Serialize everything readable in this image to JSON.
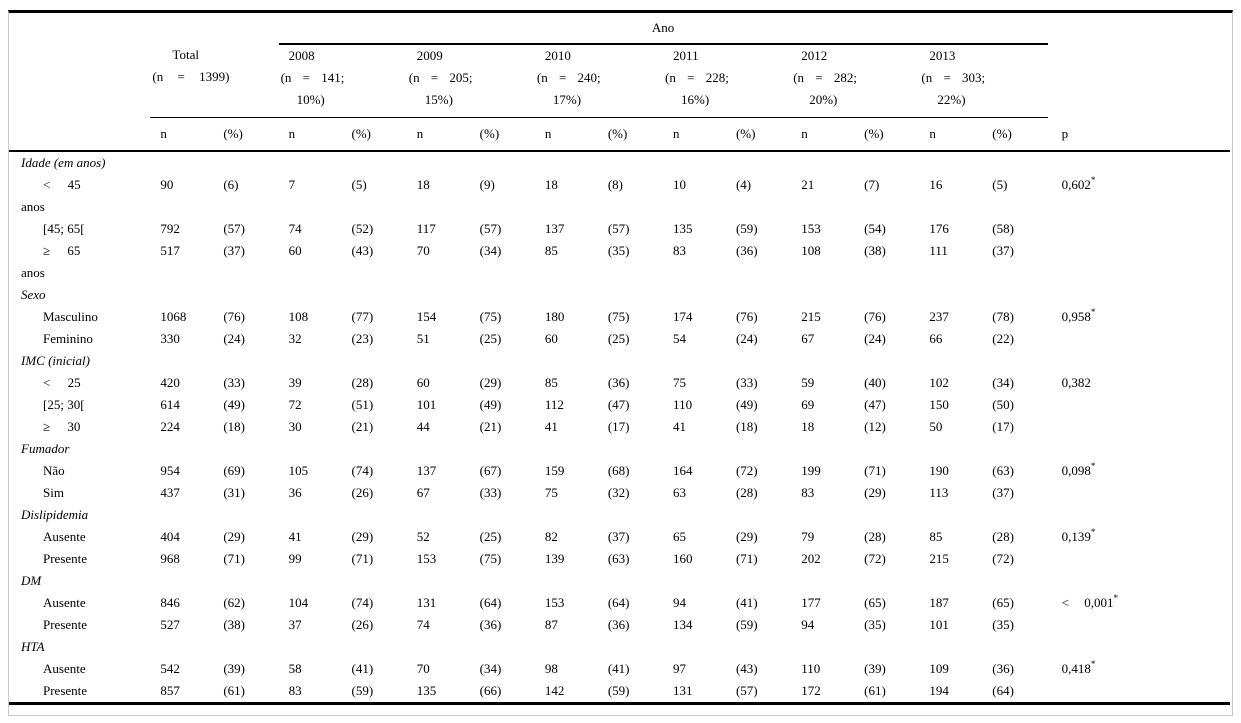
{
  "table": {
    "span_header": "Ano",
    "p_header": "p",
    "sub_n": "n",
    "sub_pct": "(%)",
    "groups": [
      {
        "name": "Total",
        "count_line": "(n = 1399)",
        "pct_line": ""
      },
      {
        "name": "2008",
        "count_line": "(n = 141;",
        "pct_line": "10%)"
      },
      {
        "name": "2009",
        "count_line": "(n = 205;",
        "pct_line": "15%)"
      },
      {
        "name": "2010",
        "count_line": "(n = 240;",
        "pct_line": "17%)"
      },
      {
        "name": "2011",
        "count_line": "(n = 228;",
        "pct_line": "16%)"
      },
      {
        "name": "2012",
        "count_line": "(n = 282;",
        "pct_line": "20%)"
      },
      {
        "name": "2013",
        "count_line": "(n = 303;",
        "pct_line": "22%)"
      }
    ],
    "rows": [
      {
        "type": "section",
        "label": "Idade (em anos)"
      },
      {
        "type": "item",
        "label": "< 45",
        "label2": "anos",
        "spread": true,
        "cells": [
          "90",
          "(6)",
          "7",
          "(5)",
          "18",
          "(9)",
          "18",
          "(8)",
          "10",
          "(4)",
          "21",
          "(7)",
          "16",
          "(5)"
        ],
        "p": "0,602",
        "p_sup": "*"
      },
      {
        "type": "item",
        "label": "[45; 65[",
        "cells": [
          "792",
          "(57)",
          "74",
          "(52)",
          "117",
          "(57)",
          "137",
          "(57)",
          "135",
          "(59)",
          "153",
          "(54)",
          "176",
          "(58)"
        ]
      },
      {
        "type": "item",
        "label": "≥ 65",
        "label2": "anos",
        "spread": true,
        "cells": [
          "517",
          "(37)",
          "60",
          "(43)",
          "70",
          "(34)",
          "85",
          "(35)",
          "83",
          "(36)",
          "108",
          "(38)",
          "111",
          "(37)"
        ]
      },
      {
        "type": "section",
        "label": "Sexo"
      },
      {
        "type": "item",
        "label": "Masculino",
        "cells": [
          "1068",
          "(76)",
          "108",
          "(77)",
          "154",
          "(75)",
          "180",
          "(75)",
          "174",
          "(76)",
          "215",
          "(76)",
          "237",
          "(78)"
        ],
        "p": "0,958",
        "p_sup": "*"
      },
      {
        "type": "item",
        "label": "Feminino",
        "cells": [
          "330",
          "(24)",
          "32",
          "(23)",
          "51",
          "(25)",
          "60",
          "(25)",
          "54",
          "(24)",
          "67",
          "(24)",
          "66",
          "(22)"
        ]
      },
      {
        "type": "section",
        "label": "IMC (inicial)"
      },
      {
        "type": "item",
        "label": "< 25",
        "spread": true,
        "cells": [
          "420",
          "(33)",
          "39",
          "(28)",
          "60",
          "(29)",
          "85",
          "(36)",
          "75",
          "(33)",
          "59",
          "(40)",
          "102",
          "(34)"
        ],
        "p": "0,382"
      },
      {
        "type": "item",
        "label": "[25; 30[",
        "cells": [
          "614",
          "(49)",
          "72",
          "(51)",
          "101",
          "(49)",
          "112",
          "(47)",
          "110",
          "(49)",
          "69",
          "(47)",
          "150",
          "(50)"
        ]
      },
      {
        "type": "item",
        "label": "≥ 30",
        "spread": true,
        "cells": [
          "224",
          "(18)",
          "30",
          "(21)",
          "44",
          "(21)",
          "41",
          "(17)",
          "41",
          "(18)",
          "18",
          "(12)",
          "50",
          "(17)"
        ]
      },
      {
        "type": "section",
        "label": "Fumador"
      },
      {
        "type": "item",
        "label": "Não",
        "cells": [
          "954",
          "(69)",
          "105",
          "(74)",
          "137",
          "(67)",
          "159",
          "(68)",
          "164",
          "(72)",
          "199",
          "(71)",
          "190",
          "(63)"
        ],
        "p": "0,098",
        "p_sup": "*"
      },
      {
        "type": "item",
        "label": "Sim",
        "cells": [
          "437",
          "(31)",
          "36",
          "(26)",
          "67",
          "(33)",
          "75",
          "(32)",
          "63",
          "(28)",
          "83",
          "(29)",
          "113",
          "(37)"
        ]
      },
      {
        "type": "section",
        "label": "Dislipidemia"
      },
      {
        "type": "item",
        "label": "Ausente",
        "cells": [
          "404",
          "(29)",
          "41",
          "(29)",
          "52",
          "(25)",
          "82",
          "(37)",
          "65",
          "(29)",
          "79",
          "(28)",
          "85",
          "(28)"
        ],
        "p": "0,139",
        "p_sup": "*"
      },
      {
        "type": "item",
        "label": "Presente",
        "cells": [
          "968",
          "(71)",
          "99",
          "(71)",
          "153",
          "(75)",
          "139",
          "(63)",
          "160",
          "(71)",
          "202",
          "(72)",
          "215",
          "(72)"
        ]
      },
      {
        "type": "section",
        "label": "DM"
      },
      {
        "type": "item",
        "label": "Ausente",
        "cells": [
          "846",
          "(62)",
          "104",
          "(74)",
          "131",
          "(64)",
          "153",
          "(64)",
          "94",
          "(41)",
          "177",
          "(65)",
          "187",
          "(65)"
        ],
        "p": "< 0,001",
        "p_sup": "*",
        "p_spread": true
      },
      {
        "type": "item",
        "label": "Presente",
        "cells": [
          "527",
          "(38)",
          "37",
          "(26)",
          "74",
          "(36)",
          "87",
          "(36)",
          "134",
          "(59)",
          "94",
          "(35)",
          "101",
          "(35)"
        ]
      },
      {
        "type": "section",
        "label": "HTA"
      },
      {
        "type": "item",
        "label": "Ausente",
        "cells": [
          "542",
          "(39)",
          "58",
          "(41)",
          "70",
          "(34)",
          "98",
          "(41)",
          "97",
          "(43)",
          "110",
          "(39)",
          "109",
          "(36)"
        ],
        "p": "0,418",
        "p_sup": "*"
      },
      {
        "type": "item",
        "label": "Presente",
        "cells": [
          "857",
          "(61)",
          "83",
          "(59)",
          "135",
          "(66)",
          "142",
          "(59)",
          "131",
          "(57)",
          "172",
          "(61)",
          "194",
          "(64)"
        ]
      }
    ]
  }
}
